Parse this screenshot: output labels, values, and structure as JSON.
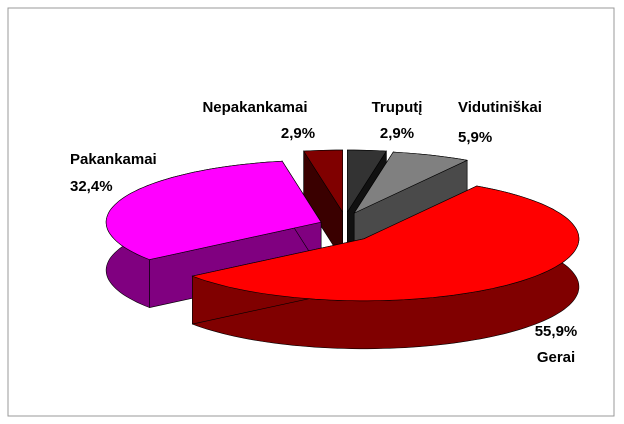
{
  "chart_data": {
    "type": "pie",
    "categories": [
      "Nepakankamai",
      "Truputį",
      "Vidutiniškai",
      "Gerai",
      "Pakankamai"
    ],
    "values": [
      2.9,
      2.9,
      5.9,
      55.9,
      32.4
    ],
    "value_labels": [
      "2,9%",
      "2,9%",
      "5,9%",
      "55,9%",
      "32,4%"
    ],
    "colors": [
      "#800000",
      "#333333",
      "#808080",
      "#ff0000",
      "#ff00ff"
    ],
    "side_colors": [
      "#3a0000",
      "#111111",
      "#4a4a4a",
      "#800000",
      "#800080"
    ]
  }
}
